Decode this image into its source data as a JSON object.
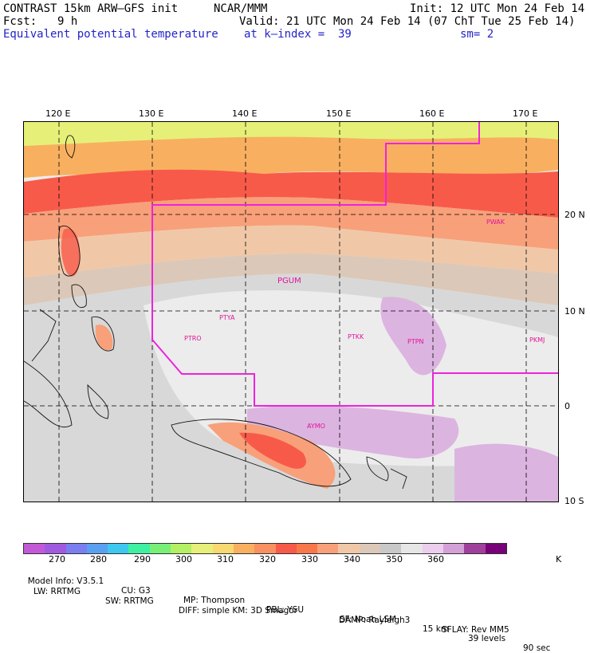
{
  "header": {
    "model": "CONTRAST 15km ARW–GFS init",
    "org": "NCAR/MMM",
    "init": "Init: 12 UTC Mon 24 Feb 14",
    "fcst_label": "Fcst:",
    "fcst_value": "9 h",
    "valid": "Valid: 21 UTC Mon 24 Feb 14 (07 ChT Tue 25 Feb 14)",
    "field": "Equivalent potential temperature",
    "level": "at k–index =  39",
    "smooth": "sm= 2"
  },
  "map": {
    "lon_labels": [
      "120 E",
      "130 E",
      "140 E",
      "150 E",
      "160 E",
      "170 E"
    ],
    "lat_labels": [
      "20 N",
      "10 N",
      "0",
      "10 S"
    ],
    "stations": [
      "PWAK",
      "PGUM",
      "PTYA",
      "PTRO",
      "PTKK",
      "PTPN",
      "PKMJ",
      "AYMO"
    ],
    "domain_boundary_color": "#ee22dd"
  },
  "colorbar": {
    "colors": [
      "#c25ad8",
      "#a05ae0",
      "#7a7ef0",
      "#5aa0f0",
      "#3ec8f0",
      "#3ef0a0",
      "#78f078",
      "#b4f064",
      "#e6f078",
      "#f8d870",
      "#f8b060",
      "#f89060",
      "#f85a4a",
      "#f8784a",
      "#f8a07a",
      "#f0c8a8",
      "#dcc8b8",
      "#c8c8c8",
      "#e6e6e6",
      "#eccdec",
      "#d4a0d8",
      "#a0409c",
      "#780078"
    ],
    "labels": [
      "270",
      "280",
      "290",
      "300",
      "310",
      "320",
      "330",
      "340",
      "350",
      "360"
    ],
    "unit": "K"
  },
  "footer": {
    "line1": [
      "Model Info: V3.5.1",
      "CU: G3",
      "MP: Thompson",
      "PBL: YSU",
      "SF: Noah LSM",
      "15 km",
      "39 levels",
      "90 sec"
    ],
    "line2": [
      "LW: RRTMG",
      "SW: RRTMG",
      "DIFF: simple KM: 3D Smagor",
      "DAMP: Rayleigh3",
      "SFLAY: Rev MM5"
    ]
  }
}
